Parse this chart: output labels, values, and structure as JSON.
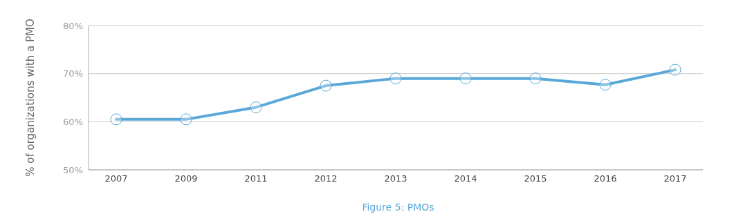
{
  "chart_data": {
    "type": "line",
    "title": "Figure 5: PMOs",
    "ylabel": "% of organizations with a PMO",
    "categories": [
      "2007",
      "2009",
      "2011",
      "2012",
      "2013",
      "2014",
      "2015",
      "2016",
      "2017"
    ],
    "series": [
      {
        "color": "#5aa8d8",
        "values": [
          60.5,
          60.5,
          63,
          67.5,
          69,
          69,
          69,
          67.7,
          70.8
        ]
      }
    ],
    "ylim": [
      50,
      80
    ],
    "yticks": [
      {
        "value": 50,
        "label": "50%"
      },
      {
        "value": 60,
        "label": "60%"
      },
      {
        "value": 70,
        "label": "70%"
      },
      {
        "value": 80,
        "label": "80%"
      }
    ],
    "grid": "y",
    "marker": "circle",
    "line_style": "solid",
    "legend": false
  }
}
